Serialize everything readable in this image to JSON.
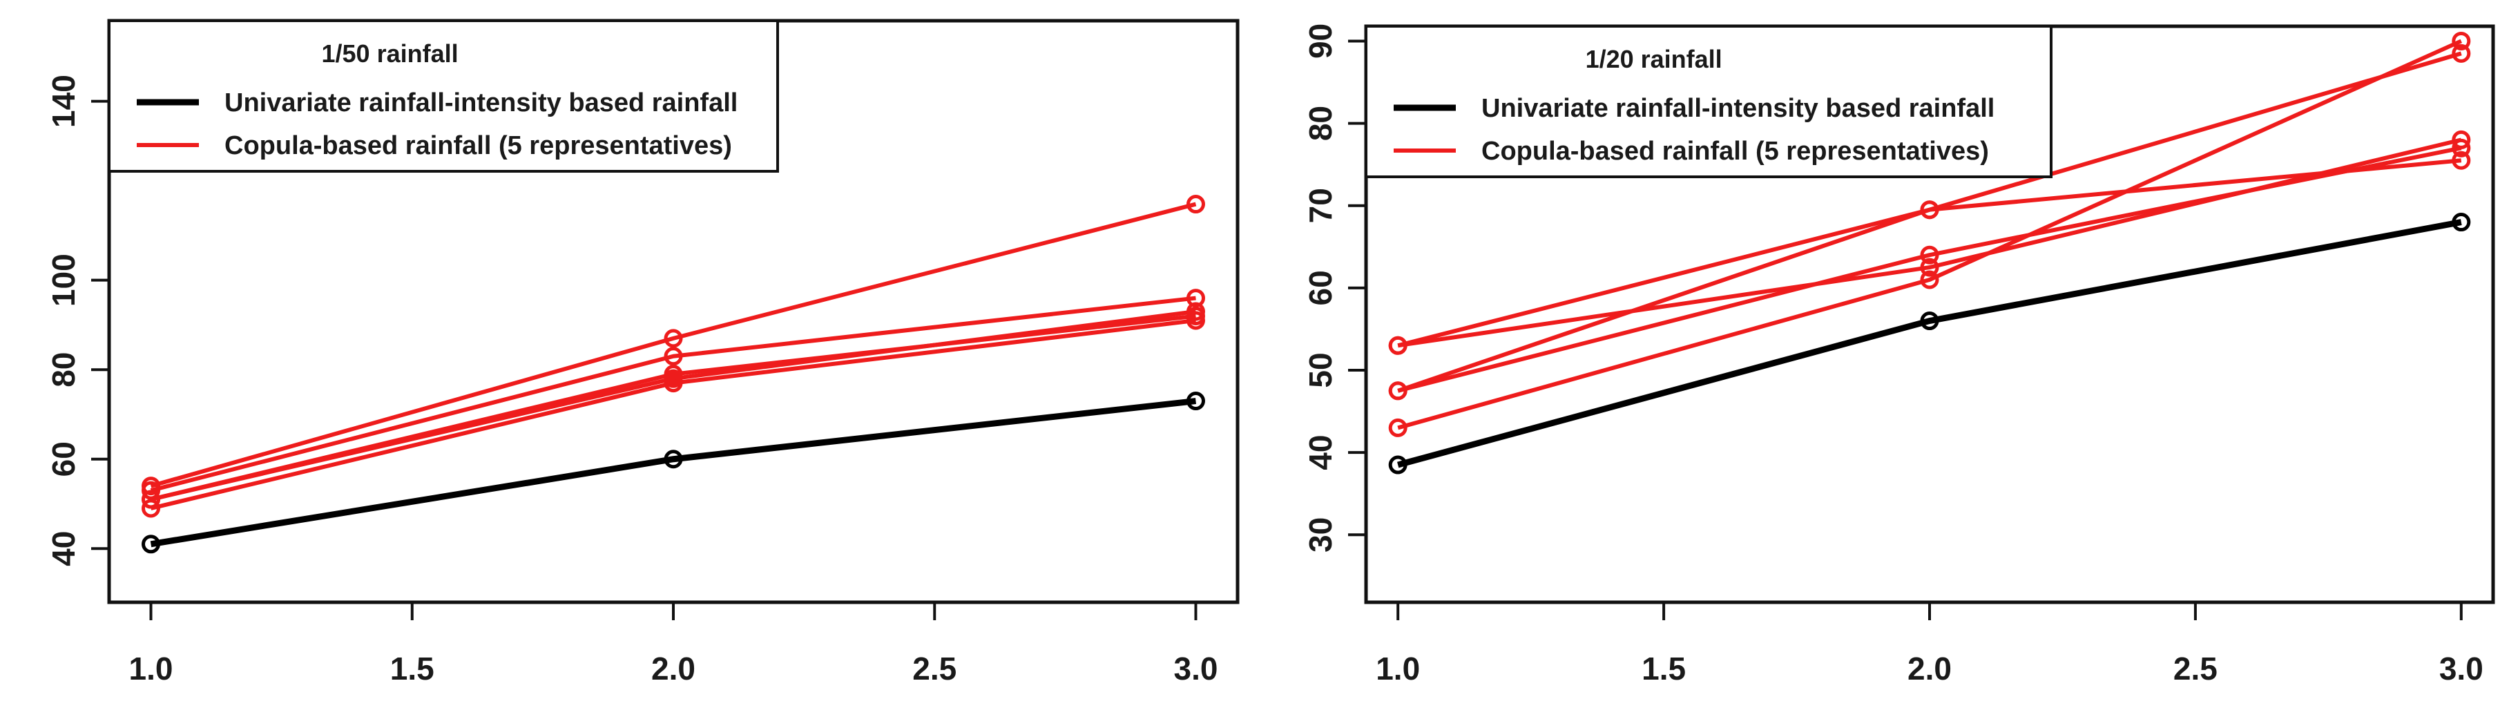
{
  "chart_data": [
    {
      "type": "line",
      "legend_title": "1/50 rainfall",
      "legend_position": "top-left",
      "x": [
        1.0,
        2.0,
        3.0
      ],
      "xlim": [
        0.92,
        3.08
      ],
      "ylim": [
        28,
        158
      ],
      "x_ticks": [
        "1.0",
        "1.5",
        "2.0",
        "2.5",
        "3.0"
      ],
      "y_ticks": [
        "40",
        "60",
        "80",
        "100",
        "140"
      ],
      "grid": false,
      "colors": {
        "univariate": "#000000",
        "copula": "#ee1c1c"
      },
      "series": [
        {
          "name": "Univariate rainfall-intensity based rainfall",
          "group": "univariate",
          "values": [
            41,
            60,
            73
          ]
        },
        {
          "group": "copula",
          "values": [
            54,
            87,
            117
          ]
        },
        {
          "group": "copula",
          "values": [
            53,
            83,
            96
          ]
        },
        {
          "group": "copula",
          "values": [
            51,
            78,
            93
          ]
        },
        {
          "group": "copula",
          "values": [
            49,
            77,
            91
          ]
        },
        {
          "group": "copula",
          "values": [
            51,
            79,
            92
          ]
        }
      ],
      "legend": [
        {
          "label": "Univariate rainfall-intensity based rainfall",
          "color": "#000000"
        },
        {
          "label": "Copula-based rainfall (5 representatives)",
          "color": "#ee1c1c"
        }
      ]
    },
    {
      "type": "line",
      "legend_title": "1/20 rainfall",
      "legend_position": "top-left",
      "x": [
        1.0,
        2.0,
        3.0
      ],
      "xlim": [
        0.94,
        3.06
      ],
      "ylim": [
        21.8,
        91.8
      ],
      "x_ticks": [
        "1.0",
        "1.5",
        "2.0",
        "2.5",
        "3.0"
      ],
      "y_ticks": [
        "30",
        "40",
        "50",
        "60",
        "70",
        "80",
        "90"
      ],
      "grid": false,
      "colors": {
        "univariate": "#000000",
        "copula": "#ee1c1c"
      },
      "series": [
        {
          "name": "Univariate rainfall-intensity based rainfall",
          "group": "univariate",
          "values": [
            38.5,
            56,
            68
          ]
        },
        {
          "group": "copula",
          "values": [
            53,
            69.5,
            75.5
          ]
        },
        {
          "group": "copula",
          "values": [
            47.5,
            69.5,
            88.5
          ]
        },
        {
          "group": "copula",
          "values": [
            47.5,
            64,
            77
          ]
        },
        {
          "group": "copula",
          "values": [
            43,
            61,
            90
          ]
        },
        {
          "group": "copula",
          "values": [
            53,
            62.5,
            78
          ]
        }
      ],
      "legend": [
        {
          "label": "Univariate rainfall-intensity based rainfall",
          "color": "#000000"
        },
        {
          "label": "Copula-based rainfall (5 representatives)",
          "color": "#ee1c1c"
        }
      ]
    }
  ]
}
